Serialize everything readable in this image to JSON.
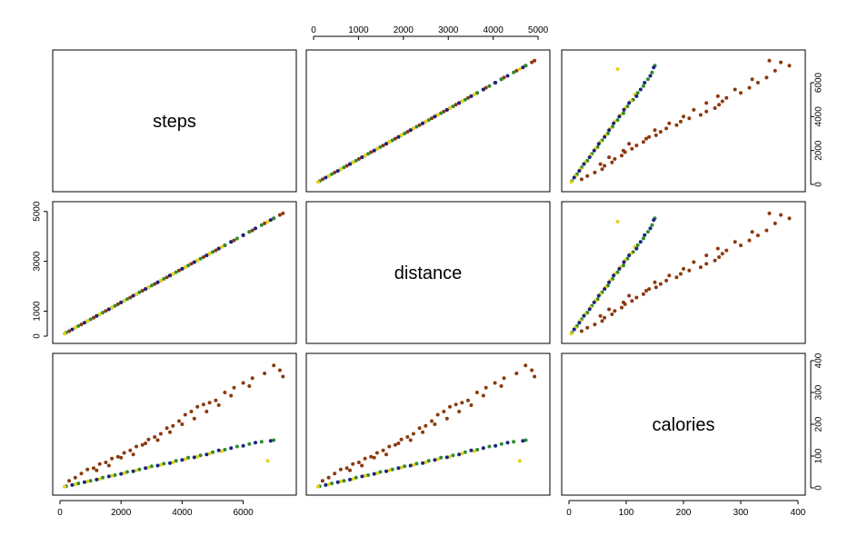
{
  "chart_data": {
    "type": "scatter",
    "variables": [
      "steps",
      "distance",
      "calories"
    ],
    "axis_ranges": {
      "steps": [
        0,
        7500
      ],
      "distance": [
        0,
        5100
      ],
      "calories": [
        0,
        400
      ]
    },
    "tick_values": {
      "steps": [
        0,
        2000,
        4000,
        6000
      ],
      "distance": [
        0,
        1000,
        2000,
        3000,
        4000,
        5000
      ],
      "distance_left": [
        0,
        1000,
        3000,
        5000
      ],
      "calories": [
        0,
        100,
        200,
        300,
        400
      ]
    },
    "colors": {
      "group_brown": "#8B3A0F",
      "group_yellow": "#E5D21B",
      "group_green": "#2E8B2E",
      "group_navy": "#1A237E"
    },
    "groups": [
      {
        "color_key": "group_brown",
        "points": [
          [
            300,
            200,
            22
          ],
          [
            500,
            335,
            32
          ],
          [
            700,
            470,
            45
          ],
          [
            900,
            605,
            58
          ],
          [
            1100,
            740,
            62
          ],
          [
            1300,
            875,
            75
          ],
          [
            1500,
            1010,
            80
          ],
          [
            1700,
            1145,
            92
          ],
          [
            1900,
            1280,
            98
          ],
          [
            2100,
            1415,
            110
          ],
          [
            2300,
            1550,
            118
          ],
          [
            2500,
            1685,
            130
          ],
          [
            2700,
            1820,
            135
          ],
          [
            2900,
            1955,
            152
          ],
          [
            3100,
            2090,
            160
          ],
          [
            3300,
            2225,
            170
          ],
          [
            3500,
            2360,
            188
          ],
          [
            3700,
            2495,
            195
          ],
          [
            3900,
            2630,
            210
          ],
          [
            4100,
            2765,
            230
          ],
          [
            4300,
            2900,
            240
          ],
          [
            4500,
            3035,
            255
          ],
          [
            4700,
            3170,
            262
          ],
          [
            4900,
            3305,
            268
          ],
          [
            5100,
            3440,
            275
          ],
          [
            5400,
            3640,
            300
          ],
          [
            5700,
            3840,
            315
          ],
          [
            6000,
            4040,
            330
          ],
          [
            6300,
            4240,
            345
          ],
          [
            6700,
            4520,
            360
          ],
          [
            7000,
            4720,
            385
          ],
          [
            7200,
            4860,
            370
          ],
          [
            7300,
            4920,
            350
          ],
          [
            1200,
            810,
            55
          ],
          [
            1600,
            1075,
            70
          ],
          [
            2000,
            1350,
            95
          ],
          [
            2400,
            1620,
            105
          ],
          [
            2800,
            1890,
            140
          ],
          [
            3200,
            2160,
            150
          ],
          [
            3600,
            2430,
            175
          ],
          [
            4000,
            2700,
            200
          ],
          [
            4400,
            2970,
            218
          ],
          [
            4800,
            3240,
            240
          ],
          [
            5200,
            3510,
            260
          ],
          [
            5600,
            3780,
            290
          ],
          [
            6200,
            4180,
            320
          ]
        ]
      },
      {
        "color_key": "group_green",
        "points": [
          [
            200,
            135,
            5
          ],
          [
            600,
            405,
            14
          ],
          [
            1000,
            675,
            22
          ],
          [
            1400,
            945,
            32
          ],
          [
            1800,
            1215,
            40
          ],
          [
            2200,
            1485,
            50
          ],
          [
            2600,
            1755,
            58
          ],
          [
            3000,
            2025,
            68
          ],
          [
            3400,
            2295,
            76
          ],
          [
            3800,
            2565,
            85
          ],
          [
            4200,
            2835,
            95
          ],
          [
            4600,
            3105,
            102
          ],
          [
            5000,
            3375,
            112
          ],
          [
            5400,
            3645,
            120
          ],
          [
            5800,
            3915,
            130
          ],
          [
            6200,
            4185,
            138
          ],
          [
            6600,
            4455,
            145
          ],
          [
            7000,
            4725,
            150
          ]
        ]
      },
      {
        "color_key": "group_yellow",
        "points": [
          [
            150,
            100,
            4
          ],
          [
            500,
            338,
            11
          ],
          [
            900,
            608,
            20
          ],
          [
            1300,
            878,
            28
          ],
          [
            1700,
            1148,
            38
          ],
          [
            2100,
            1418,
            46
          ],
          [
            2500,
            1688,
            55
          ],
          [
            2900,
            1958,
            64
          ],
          [
            3300,
            2228,
            72
          ],
          [
            3700,
            2498,
            80
          ],
          [
            4100,
            2768,
            90
          ],
          [
            4500,
            3038,
            98
          ],
          [
            4900,
            3308,
            108
          ],
          [
            5300,
            3578,
            115
          ],
          [
            6800,
            4590,
            85
          ]
        ]
      },
      {
        "color_key": "group_navy",
        "points": [
          [
            400,
            270,
            9
          ],
          [
            800,
            540,
            18
          ],
          [
            1200,
            810,
            26
          ],
          [
            1600,
            1080,
            36
          ],
          [
            2000,
            1350,
            44
          ],
          [
            2400,
            1620,
            52
          ],
          [
            2800,
            1890,
            62
          ],
          [
            3200,
            2160,
            70
          ],
          [
            3600,
            2430,
            78
          ],
          [
            4000,
            2700,
            88
          ],
          [
            4400,
            2970,
            96
          ],
          [
            4800,
            3240,
            105
          ],
          [
            5200,
            3510,
            118
          ],
          [
            5600,
            3780,
            125
          ],
          [
            6000,
            4050,
            132
          ],
          [
            6400,
            4320,
            142
          ],
          [
            6900,
            4660,
            148
          ]
        ]
      }
    ]
  }
}
